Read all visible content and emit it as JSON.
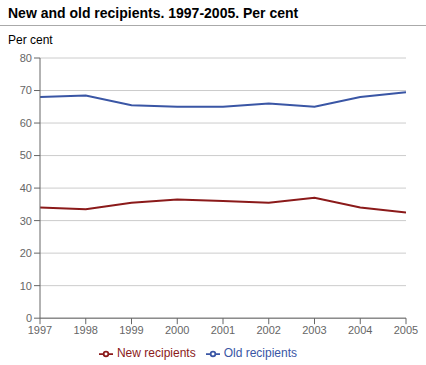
{
  "chart_data": {
    "type": "line",
    "title": "New and old recipients. 1997-2005. Per cent",
    "ylabel": "Per cent",
    "x": [
      1997,
      1998,
      1999,
      2000,
      2001,
      2002,
      2003,
      2004,
      2005
    ],
    "xlim": [
      1997,
      2005
    ],
    "xticks": [
      1997,
      1998,
      1999,
      2000,
      2001,
      2002,
      2003,
      2004,
      2005
    ],
    "ylim": [
      0,
      80
    ],
    "yticks": [
      0,
      10,
      20,
      30,
      40,
      50,
      60,
      70,
      80
    ],
    "grid": true,
    "legend": "bottom",
    "series": [
      {
        "name": "Old recipients",
        "color": "#3a56a5",
        "values": [
          68.0,
          68.5,
          65.5,
          65.0,
          65.0,
          66.0,
          65.0,
          68.0,
          69.5
        ]
      },
      {
        "name": "New recipients",
        "color": "#8b1a1a",
        "values": [
          34.0,
          33.5,
          35.5,
          36.5,
          36.0,
          35.5,
          37.0,
          34.0,
          32.5
        ]
      }
    ]
  }
}
